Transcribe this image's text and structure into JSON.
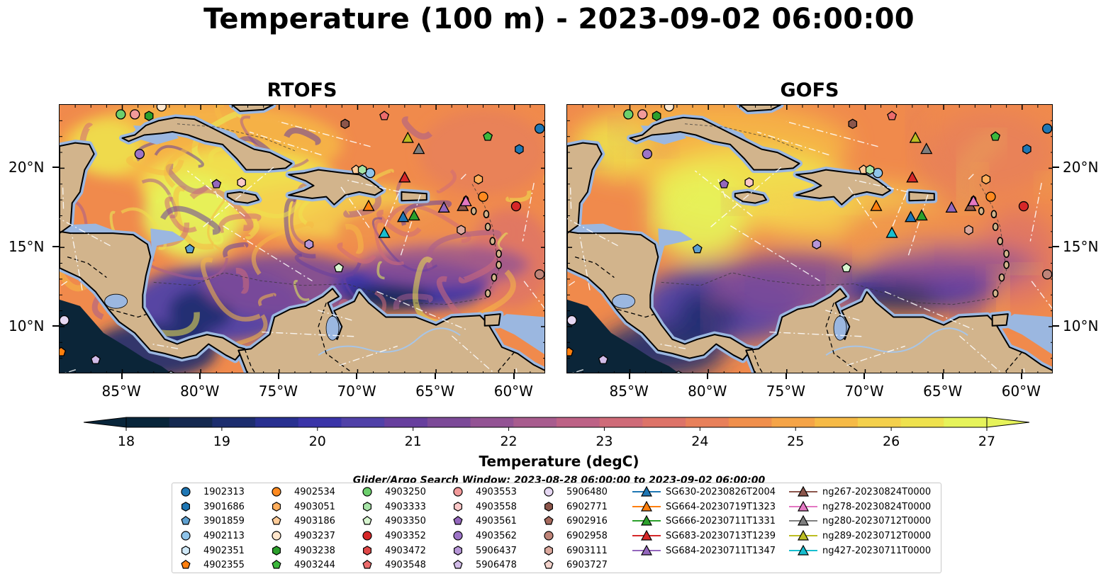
{
  "title": "Temperature (100 m) - 2023-09-02 06:00:00",
  "panels": [
    {
      "title": "RTOFS"
    },
    {
      "title": "GOFS"
    }
  ],
  "axes": {
    "x_ticks": [
      "85°W",
      "80°W",
      "75°W",
      "70°W",
      "65°W",
      "60°W"
    ],
    "y_ticks": [
      "20°N",
      "15°N",
      "10°N"
    ],
    "lon_range": [
      -89,
      -58
    ],
    "lat_range": [
      7,
      24
    ]
  },
  "colorbar": {
    "label": "Temperature (degC)",
    "ticks": [
      "18",
      "19",
      "20",
      "21",
      "22",
      "23",
      "24",
      "25",
      "26",
      "27"
    ],
    "range": [
      18,
      27
    ],
    "extend": "both",
    "colors": [
      "#08253a",
      "#14284f",
      "#1c2d6e",
      "#283090",
      "#3a34a8",
      "#5041a8",
      "#673f9e",
      "#7c4a98",
      "#935394",
      "#a85c8e",
      "#bd6286",
      "#cf6b78",
      "#dd7368",
      "#e8805a",
      "#f08f4c",
      "#f5a447",
      "#f6ba46",
      "#f4d04c",
      "#efe24e",
      "#e6f35a"
    ]
  },
  "colors": {
    "land": "#d2b48c",
    "shelf": "#9bb7e0",
    "land_mask_dark": "#0b2538"
  },
  "legend": {
    "title": "Glider/Argo Search Window: 2023-08-28 06:00:00 to 2023-09-02 06:00:00",
    "columns": [
      [
        {
          "label": "1902313",
          "marker": "circle",
          "color": "#1f77b4"
        },
        {
          "label": "3901686",
          "marker": "hexagon",
          "color": "#1f77b4"
        },
        {
          "label": "3901859",
          "marker": "pentagon",
          "color": "#5ea0d0"
        },
        {
          "label": "4902113",
          "marker": "circle",
          "color": "#8fc4ea"
        },
        {
          "label": "4902351",
          "marker": "hexagon",
          "color": "#cfe8f7"
        },
        {
          "label": "4902355",
          "marker": "pentagon",
          "color": "#ff7f0e"
        }
      ],
      [
        {
          "label": "4902534",
          "marker": "circle",
          "color": "#ff8a1f"
        },
        {
          "label": "4903051",
          "marker": "hexagon",
          "color": "#ffae5c"
        },
        {
          "label": "4903186",
          "marker": "pentagon",
          "color": "#ffcc99"
        },
        {
          "label": "4903237",
          "marker": "circle",
          "color": "#ffe6cc"
        },
        {
          "label": "4903238",
          "marker": "hexagon",
          "color": "#2ca02c"
        },
        {
          "label": "4903244",
          "marker": "pentagon",
          "color": "#3cb83c"
        }
      ],
      [
        {
          "label": "4903250",
          "marker": "circle",
          "color": "#6ccf6c"
        },
        {
          "label": "4903333",
          "marker": "hexagon",
          "color": "#a6e3a6"
        },
        {
          "label": "4903350",
          "marker": "pentagon",
          "color": "#d8f5d0"
        },
        {
          "label": "4903352",
          "marker": "circle",
          "color": "#d62728"
        },
        {
          "label": "4903472",
          "marker": "hexagon",
          "color": "#e04848"
        },
        {
          "label": "4903548",
          "marker": "pentagon",
          "color": "#ec6c6c"
        }
      ],
      [
        {
          "label": "4903553",
          "marker": "circle",
          "color": "#f29a9a"
        },
        {
          "label": "4903558",
          "marker": "hexagon",
          "color": "#fac8c8"
        },
        {
          "label": "4903561",
          "marker": "pentagon",
          "color": "#9467bd"
        },
        {
          "label": "4903562",
          "marker": "circle",
          "color": "#9d74c7"
        },
        {
          "label": "5906437",
          "marker": "hexagon",
          "color": "#b796d8"
        },
        {
          "label": "5906478",
          "marker": "pentagon",
          "color": "#d2bce8"
        }
      ],
      [
        {
          "label": "5906480",
          "marker": "circle",
          "color": "#e6d8f3"
        },
        {
          "label": "6902771",
          "marker": "hexagon",
          "color": "#8c564b"
        },
        {
          "label": "6902916",
          "marker": "pentagon",
          "color": "#a66a5e"
        },
        {
          "label": "6902958",
          "marker": "circle",
          "color": "#bf8478"
        },
        {
          "label": "6903111",
          "marker": "hexagon",
          "color": "#dca99e"
        },
        {
          "label": "6903727",
          "marker": "pentagon",
          "color": "#f3d3cc"
        }
      ],
      [
        {
          "label": "SG630-20230826T2004",
          "marker": "triangle-line",
          "color": "#1f77b4"
        },
        {
          "label": "SG664-20230719T1323",
          "marker": "triangle-line",
          "color": "#ff7f0e"
        },
        {
          "label": "SG666-20230711T1331",
          "marker": "triangle-line",
          "color": "#2ca02c"
        },
        {
          "label": "SG683-20230713T1239",
          "marker": "triangle-line",
          "color": "#d62728"
        },
        {
          "label": "SG684-20230711T1347",
          "marker": "triangle-line",
          "color": "#9467bd"
        }
      ],
      [
        {
          "label": "ng267-20230824T0000",
          "marker": "triangle-line",
          "color": "#8c564b"
        },
        {
          "label": "ng278-20230824T0000",
          "marker": "triangle-line",
          "color": "#e377c2"
        },
        {
          "label": "ng280-20230712T0000",
          "marker": "triangle-line",
          "color": "#7f7f7f"
        },
        {
          "label": "ng289-20230712T0000",
          "marker": "triangle-line",
          "color": "#bcbd22"
        },
        {
          "label": "ng427-20230711T0000",
          "marker": "triangle-line",
          "color": "#17becf"
        }
      ]
    ]
  },
  "platforms": [
    {
      "id": "1902313",
      "lon": -58.4,
      "lat": 22.5,
      "marker": "circle",
      "color": "#1f77b4"
    },
    {
      "id": "3901686",
      "lon": -59.7,
      "lat": 21.2,
      "marker": "hexagon",
      "color": "#1f77b4"
    },
    {
      "id": "4902113",
      "lon": -69.2,
      "lat": 19.7,
      "marker": "circle",
      "color": "#8fc4ea"
    },
    {
      "id": "4902351",
      "lon": -81.9,
      "lat": 6.9,
      "marker": "hexagon",
      "color": "#cfe8f7"
    },
    {
      "id": "4902355",
      "lon": -88.9,
      "lat": 8.4,
      "marker": "pentagon",
      "color": "#ff7f0e"
    },
    {
      "id": "4902534",
      "lon": -62.0,
      "lat": 18.2,
      "marker": "circle",
      "color": "#ff8a1f"
    },
    {
      "id": "4903051",
      "lon": -62.3,
      "lat": 19.3,
      "marker": "hexagon",
      "color": "#ffae5c"
    },
    {
      "id": "4903186",
      "lon": -70.1,
      "lat": 19.9,
      "marker": "pentagon",
      "color": "#ffcc99"
    },
    {
      "id": "4903237",
      "lon": -82.5,
      "lat": 23.9,
      "marker": "circle",
      "color": "#ffe6cc"
    },
    {
      "id": "4903238",
      "lon": -83.3,
      "lat": 23.3,
      "marker": "hexagon",
      "color": "#2ca02c"
    },
    {
      "id": "4903244",
      "lon": -61.7,
      "lat": 22.0,
      "marker": "pentagon",
      "color": "#3cb83c"
    },
    {
      "id": "4903250",
      "lon": -85.1,
      "lat": 23.4,
      "marker": "circle",
      "color": "#6ccf6c"
    },
    {
      "id": "4903333",
      "lon": -69.7,
      "lat": 19.9,
      "marker": "hexagon",
      "color": "#a6e3a6"
    },
    {
      "id": "4903350",
      "lon": -71.2,
      "lat": 13.7,
      "marker": "pentagon",
      "color": "#d8f5d0"
    },
    {
      "id": "4903352",
      "lon": -59.9,
      "lat": 17.6,
      "marker": "circle",
      "color": "#d62728"
    },
    {
      "id": "4903548",
      "lon": -68.3,
      "lat": 23.3,
      "marker": "pentagon",
      "color": "#ec6c6c"
    },
    {
      "id": "4903553",
      "lon": -84.2,
      "lat": 23.4,
      "marker": "circle",
      "color": "#f29a9a"
    },
    {
      "id": "4903558",
      "lon": -77.4,
      "lat": 19.1,
      "marker": "hexagon",
      "color": "#fac8c8"
    },
    {
      "id": "4903561",
      "lon": -79.0,
      "lat": 19.0,
      "marker": "pentagon",
      "color": "#9467bd"
    },
    {
      "id": "4903562",
      "lon": -83.9,
      "lat": 20.9,
      "marker": "circle",
      "color": "#9d74c7"
    },
    {
      "id": "5906437",
      "lon": -73.1,
      "lat": 15.2,
      "marker": "hexagon",
      "color": "#b796d8"
    },
    {
      "id": "5906478",
      "lon": -86.7,
      "lat": 7.9,
      "marker": "pentagon",
      "color": "#d2bce8"
    },
    {
      "id": "5906480",
      "lon": -88.7,
      "lat": 10.4,
      "marker": "circle",
      "color": "#e6d8f3"
    },
    {
      "id": "6902771",
      "lon": -70.8,
      "lat": 22.8,
      "marker": "hexagon",
      "color": "#8c564b"
    },
    {
      "id": "6902958",
      "lon": -58.4,
      "lat": 13.3,
      "marker": "circle",
      "color": "#bf8478"
    },
    {
      "id": "6903111",
      "lon": -63.4,
      "lat": 16.1,
      "marker": "hexagon",
      "color": "#dca99e"
    },
    {
      "id": "3901859",
      "lon": -80.7,
      "lat": 14.9,
      "marker": "pentagon",
      "color": "#5ea0d0"
    },
    {
      "id": "SG664-20230719T1323",
      "lon": -69.3,
      "lat": 17.6,
      "marker": "triangle",
      "color": "#ff7f0e"
    },
    {
      "id": "SG666-20230711T1331",
      "lon": -66.4,
      "lat": 17.0,
      "marker": "triangle",
      "color": "#2ca02c"
    },
    {
      "id": "SG683-20230713T1239",
      "lon": -67.0,
      "lat": 19.4,
      "marker": "triangle",
      "color": "#d62728"
    },
    {
      "id": "SG684-20230711T1347",
      "lon": -64.5,
      "lat": 17.5,
      "marker": "triangle",
      "color": "#9467bd"
    },
    {
      "id": "SG630-20230826T2004",
      "lon": -67.1,
      "lat": 16.9,
      "marker": "triangle",
      "color": "#1f77b4"
    },
    {
      "id": "ng267-20230824T0000",
      "lon": -63.3,
      "lat": 17.6,
      "marker": "triangle",
      "color": "#8c564b"
    },
    {
      "id": "ng278-20230824T0000",
      "lon": -63.1,
      "lat": 17.9,
      "marker": "triangle",
      "color": "#e377c2"
    },
    {
      "id": "ng280-20230712T0000",
      "lon": -66.1,
      "lat": 21.2,
      "marker": "triangle",
      "color": "#7f7f7f"
    },
    {
      "id": "ng289-20230712T0000",
      "lon": -66.8,
      "lat": 21.9,
      "marker": "triangle",
      "color": "#bcbd22"
    },
    {
      "id": "ng427-20230711T0000",
      "lon": -68.3,
      "lat": 15.9,
      "marker": "triangle",
      "color": "#17becf"
    }
  ]
}
